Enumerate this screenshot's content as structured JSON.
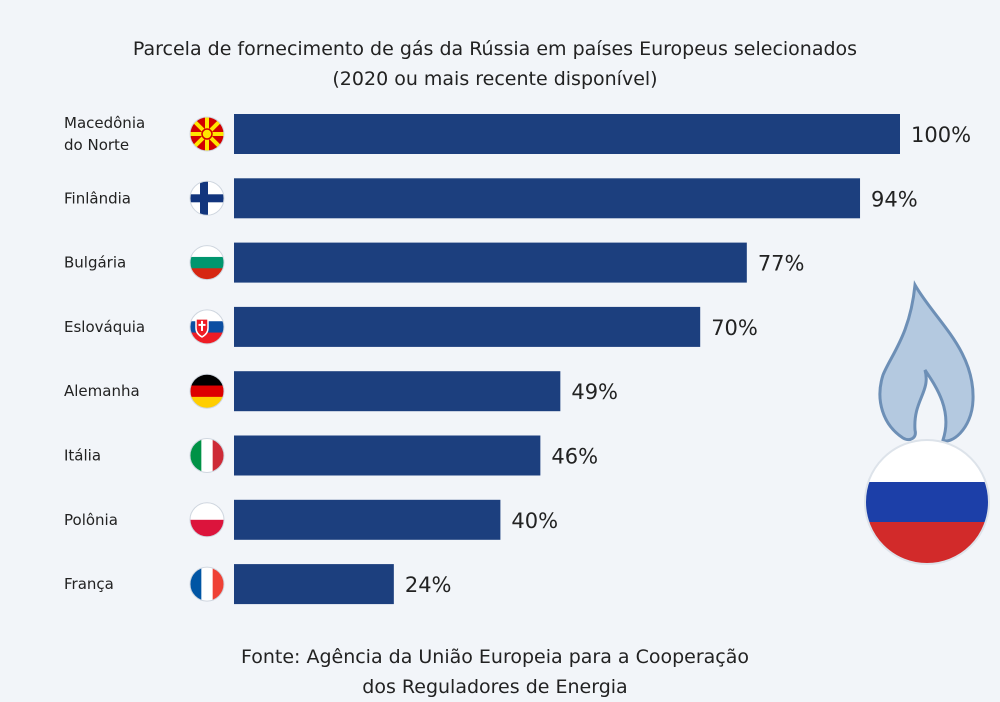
{
  "chart_data": {
    "type": "bar",
    "orientation": "horizontal",
    "title": "Parcela de fornecimento de gás da Rússia em países Europeus selecionados",
    "subtitle": "(2020 ou mais recente disponível)",
    "categories": [
      [
        "Macedônia",
        "do Norte"
      ],
      [
        "Finlândia"
      ],
      [
        "Bulgária"
      ],
      [
        "Eslováquia"
      ],
      [
        "Alemanha"
      ],
      [
        "Itália"
      ],
      [
        "Polônia"
      ],
      [
        "França"
      ]
    ],
    "values": [
      100,
      94,
      77,
      70,
      49,
      46,
      40,
      24
    ],
    "value_labels": [
      "100%",
      "94%",
      "77%",
      "70%",
      "49%",
      "46%",
      "40%",
      "24%"
    ],
    "flags": [
      "north-macedonia-flag-icon",
      "finland-flag-icon",
      "bulgaria-flag-icon",
      "slovakia-flag-icon",
      "germany-flag-icon",
      "italy-flag-icon",
      "poland-flag-icon",
      "france-flag-icon"
    ],
    "xlim": [
      0,
      100
    ],
    "bar_color": "#1c3f7e",
    "source": [
      "Fonte: Agência da União Europeia para a Cooperação",
      "dos Reguladores de Energia"
    ]
  },
  "decoration": {
    "icon": "gas-flame-russia-flag-icon",
    "colors": {
      "flame": "#b4c9e0",
      "flame_stroke": "#6d8fb6",
      "white": "#ffffff",
      "blue": "#1c3fa8",
      "red": "#d22a2a"
    }
  }
}
